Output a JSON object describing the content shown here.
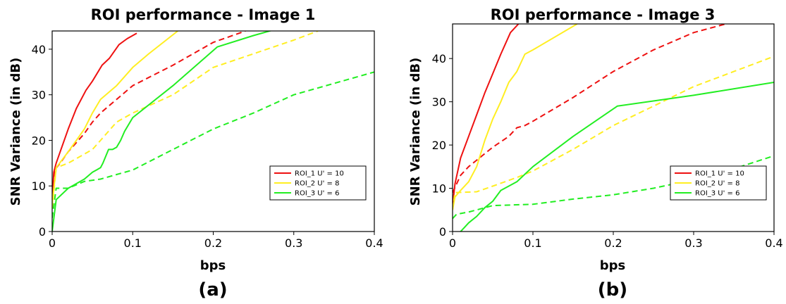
{
  "panels": [
    {
      "panel_label": "(a)",
      "title": "ROI performance - Image 1",
      "xlabel": "bps",
      "ylabel": "SNR Variance (in dB)"
    },
    {
      "panel_label": "(b)",
      "title": "ROI performance - Image 3",
      "xlabel": "bps",
      "ylabel": "SNR Variance (in dB)"
    }
  ],
  "chart_data": [
    {
      "type": "line",
      "title": "ROI performance - Image 1",
      "xlabel": "bps",
      "ylabel": "SNR Variance (in dB)",
      "xlim": [
        0,
        0.4
      ],
      "ylim": [
        0,
        44
      ],
      "xticks": [
        0,
        0.1,
        0.2,
        0.3,
        0.4
      ],
      "xtick_labels": [
        "0",
        "0.1",
        "0.2",
        "0.3",
        "0.4"
      ],
      "yticks": [
        0,
        10,
        20,
        30,
        40
      ],
      "ytick_labels": [
        "0",
        "10",
        "20",
        "30",
        "40"
      ],
      "grid": false,
      "legend": "center-right",
      "legend_entries": [
        {
          "label": "ROI_1 U' = 10",
          "color": "#ee1111"
        },
        {
          "label": "ROI_2 U' = 8",
          "color": "#ffee22"
        },
        {
          "label": "ROI_3 U' = 6",
          "color": "#22ee22"
        }
      ],
      "series": [
        {
          "name": "ROI_1 U' = 10",
          "color": "#ee1111",
          "style": "solid",
          "x": [
            0,
            0.002,
            0.005,
            0.01,
            0.02,
            0.03,
            0.042,
            0.05,
            0.062,
            0.071,
            0.083,
            0.093,
            0.105
          ],
          "y": [
            7,
            13,
            15,
            17.5,
            22.5,
            27,
            31,
            33,
            36.5,
            38,
            41,
            42.3,
            43.5
          ]
        },
        {
          "name": "",
          "color": "#ee1111",
          "style": "dashed",
          "x": [
            0,
            0.003,
            0.01,
            0.02,
            0.03,
            0.04,
            0.05,
            0.06,
            0.08,
            0.1,
            0.15,
            0.2,
            0.24
          ],
          "y": [
            6,
            13.5,
            15,
            17.5,
            19.5,
            21.5,
            24,
            26,
            29,
            32,
            36.5,
            41.5,
            44
          ]
        },
        {
          "name": "ROI_2 U' = 8",
          "color": "#ffee22",
          "style": "solid",
          "x": [
            0,
            0.005,
            0.02,
            0.03,
            0.04,
            0.05,
            0.06,
            0.08,
            0.09,
            0.1,
            0.12,
            0.156
          ],
          "y": [
            6,
            14,
            17.5,
            20,
            22.5,
            26,
            29,
            32,
            34,
            36,
            39,
            44
          ]
        },
        {
          "name": "",
          "color": "#ffee22",
          "style": "dashed",
          "x": [
            0,
            0.005,
            0.02,
            0.03,
            0.04,
            0.05,
            0.06,
            0.07,
            0.08,
            0.1,
            0.15,
            0.2,
            0.3,
            0.33
          ],
          "y": [
            5,
            14,
            15,
            16,
            17,
            18,
            20,
            22,
            24,
            26,
            30,
            36,
            42,
            44
          ]
        },
        {
          "name": "ROI_3 U' = 6",
          "color": "#22ee22",
          "style": "solid",
          "x": [
            0,
            0.005,
            0.02,
            0.04,
            0.05,
            0.055,
            0.06,
            0.063,
            0.07,
            0.075,
            0.08,
            0.085,
            0.09,
            0.1,
            0.15,
            0.205,
            0.25,
            0.28
          ],
          "y": [
            0,
            7,
            9.5,
            11.5,
            13,
            13.5,
            14,
            15,
            18,
            18,
            18.5,
            20,
            22,
            25,
            32,
            40.5,
            43,
            44.5
          ]
        },
        {
          "name": "",
          "color": "#22ee22",
          "style": "dashed",
          "x": [
            0,
            0.005,
            0.02,
            0.04,
            0.06,
            0.08,
            0.1,
            0.15,
            0.2,
            0.25,
            0.3,
            0.35,
            0.4
          ],
          "y": [
            3,
            9.5,
            9.5,
            11,
            11.5,
            12.5,
            13.5,
            18,
            22.5,
            26,
            30,
            32.5,
            35
          ]
        }
      ]
    },
    {
      "type": "line",
      "title": "ROI performance - Image 3",
      "xlabel": "bps",
      "ylabel": "SNR Variance (in dB)",
      "xlim": [
        0,
        0.4
      ],
      "ylim": [
        0,
        48
      ],
      "xticks": [
        0,
        0.1,
        0.2,
        0.3,
        0.4
      ],
      "xtick_labels": [
        "0",
        "0.1",
        "0.2",
        "0.3",
        "0.4"
      ],
      "yticks": [
        0,
        10,
        20,
        30,
        40
      ],
      "ytick_labels": [
        "0",
        "10",
        "20",
        "30",
        "40"
      ],
      "grid": false,
      "legend": "center-right",
      "legend_entries": [
        {
          "label": "ROI_1 U' = 10",
          "color": "#ee1111"
        },
        {
          "label": "ROI_2 U' = 8",
          "color": "#ffee22"
        },
        {
          "label": "ROI_3 U' = 6",
          "color": "#22ee22"
        }
      ],
      "series": [
        {
          "name": "ROI_1 U' = 10",
          "color": "#ee1111",
          "style": "solid",
          "x": [
            0,
            0.003,
            0.01,
            0.02,
            0.03,
            0.04,
            0.05,
            0.06,
            0.072,
            0.082
          ],
          "y": [
            6,
            11,
            17,
            22,
            27,
            32,
            36.5,
            41,
            46,
            48
          ]
        },
        {
          "name": "",
          "color": "#ee1111",
          "style": "dashed",
          "x": [
            0,
            0.01,
            0.02,
            0.03,
            0.05,
            0.07,
            0.08,
            0.09,
            0.1,
            0.15,
            0.2,
            0.25,
            0.3,
            0.35
          ],
          "y": [
            9,
            13,
            15,
            16.5,
            19.5,
            22,
            24,
            24.5,
            25.5,
            31,
            37,
            42,
            46,
            48.5
          ]
        },
        {
          "name": "ROI_2 U' = 8",
          "color": "#ffee22",
          "style": "solid",
          "x": [
            0,
            0.003,
            0.01,
            0.02,
            0.03,
            0.04,
            0.05,
            0.06,
            0.07,
            0.08,
            0.09,
            0.1,
            0.155
          ],
          "y": [
            5,
            8,
            9.5,
            11.5,
            15,
            21,
            26,
            30,
            34.5,
            37,
            41,
            42,
            48
          ]
        },
        {
          "name": "",
          "color": "#ffee22",
          "style": "dashed",
          "x": [
            0,
            0.003,
            0.03,
            0.05,
            0.08,
            0.1,
            0.15,
            0.2,
            0.25,
            0.3,
            0.35,
            0.4
          ],
          "y": [
            5,
            9,
            9.2,
            10.5,
            12.5,
            14,
            19,
            24.5,
            29,
            33.5,
            37,
            40.5
          ]
        },
        {
          "name": "ROI_3 U' = 6",
          "color": "#22ee22",
          "style": "solid",
          "x": [
            0,
            0.01,
            0.015,
            0.02,
            0.03,
            0.04,
            0.05,
            0.06,
            0.08,
            0.1,
            0.15,
            0.205,
            0.3,
            0.4
          ],
          "y": [
            -1,
            0,
            1,
            2,
            3.5,
            5.5,
            7,
            9.5,
            11.5,
            15,
            22,
            29,
            31.5,
            34.5
          ]
        },
        {
          "name": "",
          "color": "#22ee22",
          "style": "dashed",
          "x": [
            0,
            0.005,
            0.02,
            0.03,
            0.05,
            0.1,
            0.15,
            0.2,
            0.25,
            0.3,
            0.35,
            0.4
          ],
          "y": [
            3,
            4,
            4.5,
            5,
            6,
            6.3,
            7.5,
            8.5,
            10,
            12,
            14.5,
            17.5
          ]
        }
      ]
    }
  ]
}
